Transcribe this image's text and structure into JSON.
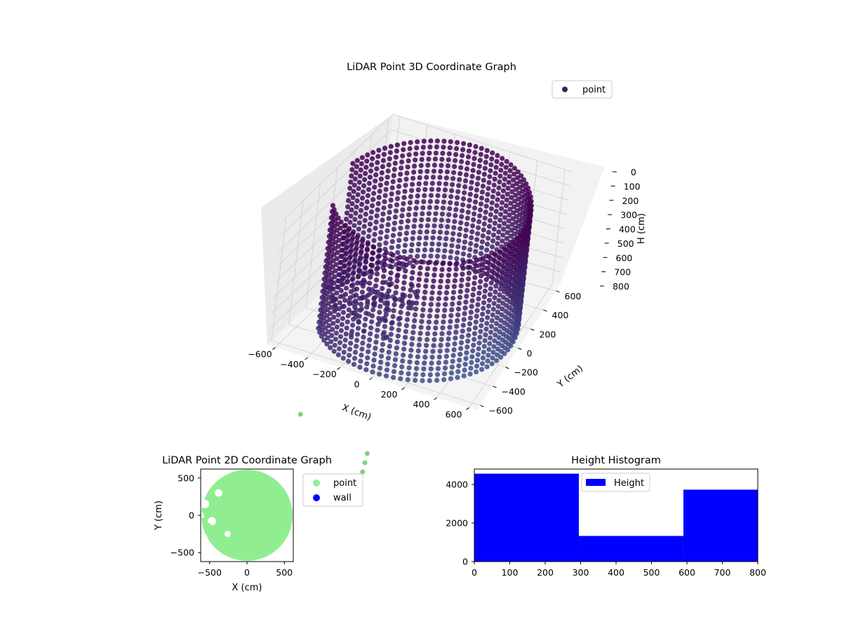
{
  "colors": {
    "point_3d": "#3b1f6b",
    "point_2d": "#90ee90",
    "wall": "#0000ff",
    "hist": "#0000ff",
    "pane_top": "#f2f2f2",
    "pane_side": "#ebebeb",
    "pane_floor": "#f4f4f4",
    "grid": "#cfcfcf",
    "cmap_low": "#440154",
    "cmap_mid": "#3b528b",
    "cmap_high": "#5ec962"
  },
  "chart_data": [
    {
      "type": "scatter",
      "projection": "3d",
      "title": "LiDAR Point 3D Coordinate Graph",
      "xlabel": "X (cm)",
      "ylabel": "Y (cm)",
      "zlabel": "H (cm)",
      "xlim": [
        -650,
        650
      ],
      "ylim": [
        -650,
        650
      ],
      "zlim": [
        0,
        800
      ],
      "zaxis_inverted": true,
      "x_ticks": [
        "−600",
        "−400",
        "−200",
        "0",
        "200",
        "400",
        "600"
      ],
      "y_ticks": [
        "−600",
        "−400",
        "−200",
        "0",
        "200",
        "400",
        "600"
      ],
      "z_ticks": [
        "0",
        "100",
        "200",
        "300",
        "400",
        "500",
        "600",
        "700",
        "800"
      ],
      "legend": {
        "entries": [
          "point"
        ],
        "position": "top-right"
      },
      "grid": true,
      "series": [
        {
          "name": "point",
          "description_shape": "cylindrical wall of points, radius ~600 cm, heights 0–800 cm, with gap near front-left and sparse interior points",
          "wall_radius": 600,
          "wall_height_range": [
            0,
            800
          ],
          "outliers": [
            {
              "x": -300,
              "y": -900,
              "h": 1000
            },
            {
              "x": 150,
              "y": -1000,
              "h": 1050
            },
            {
              "x": 150,
              "y": -1020,
              "h": 1100
            },
            {
              "x": 150,
              "y": -1040,
              "h": 1150
            }
          ]
        }
      ]
    },
    {
      "type": "scatter",
      "title": "LiDAR Point 2D Coordinate Graph",
      "xlabel": "X (cm)",
      "ylabel": "Y (cm)",
      "xlim": [
        -620,
        620
      ],
      "ylim": [
        -620,
        620
      ],
      "x_ticks": [
        "−500",
        "0",
        "500"
      ],
      "y_ticks": [
        "−500",
        "0",
        "500"
      ],
      "legend": {
        "entries": [
          "point",
          "wall"
        ],
        "position": "outside-right"
      },
      "series": [
        {
          "name": "point",
          "shape": "filled disk radius ~600 cm with holes near left edge"
        },
        {
          "name": "wall",
          "points": []
        }
      ]
    },
    {
      "type": "bar",
      "histogram": true,
      "title": "Height Histogram",
      "xlim": [
        0,
        800
      ],
      "ylim": [
        0,
        4800
      ],
      "x_ticks": [
        "0",
        "100",
        "200",
        "300",
        "400",
        "500",
        "600",
        "700",
        "800"
      ],
      "y_ticks": [
        "0",
        "2000",
        "4000"
      ],
      "bins": [
        [
          0,
          295
        ],
        [
          295,
          590
        ],
        [
          590,
          800
        ]
      ],
      "values": [
        4560,
        1330,
        3730
      ],
      "legend": {
        "entries": [
          "Height"
        ],
        "position": "upper-center"
      }
    }
  ]
}
